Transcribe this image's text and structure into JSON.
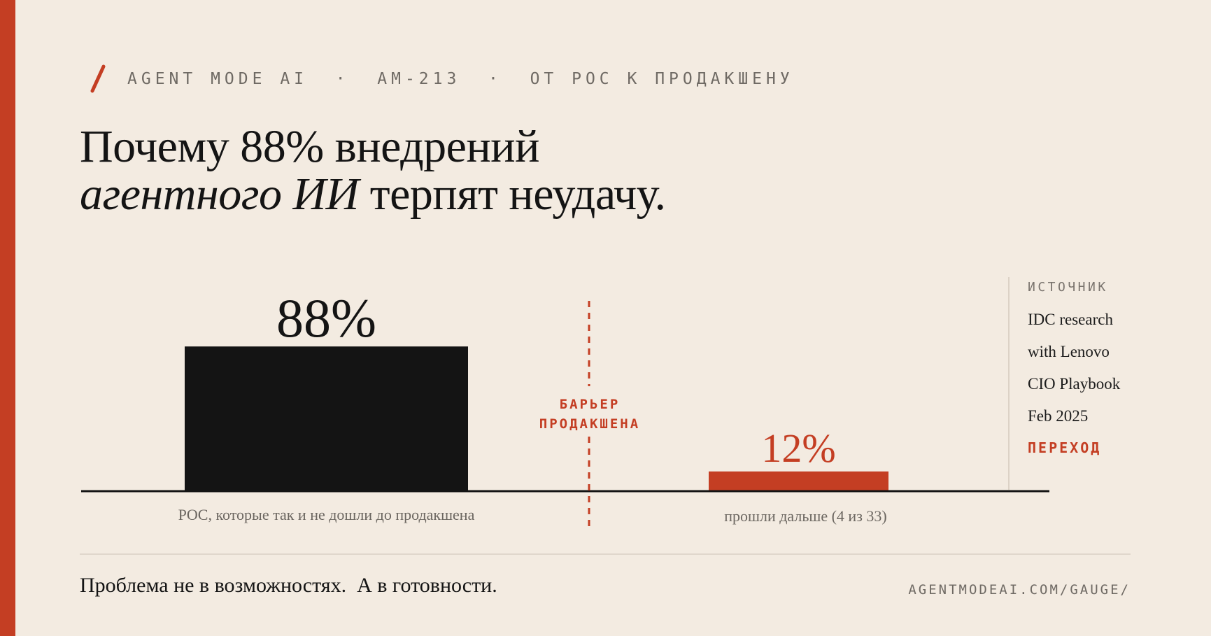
{
  "header": {
    "kicker": "AGENT MODE AI  ·  AM-213  ·  ОТ POC К ПРОДАКШЕНУ",
    "accent_color": "#c43e23"
  },
  "title": {
    "line1": "Почему 88% внедрений",
    "line2_italic": "агентного ИИ",
    "line2_rest": " терпят неудачу."
  },
  "chart_data": {
    "type": "bar",
    "categories": [
      "POC, которые так и не дошли до продакшена",
      "прошли дальше (4 из 33)"
    ],
    "values": [
      88,
      12
    ],
    "value_labels": [
      "88%",
      "12%"
    ],
    "colors": [
      "#141414",
      "#c43e23"
    ],
    "ylim": [
      0,
      100
    ],
    "threshold": {
      "label_line1": "БАРЬЕР",
      "label_line2": "ПРОДАКШЕНА",
      "style": "dashed"
    }
  },
  "source": {
    "label": "ИСТОЧНИК",
    "lines": [
      "IDC research",
      "with Lenovo",
      "CIO Playbook",
      "Feb 2025"
    ],
    "link_label": "ПЕРЕХОД"
  },
  "footer": {
    "tagline": "Проблема не в возможностях.  А в готовности.",
    "url": "AGENTMODEAI.COM/GAUGE/"
  }
}
